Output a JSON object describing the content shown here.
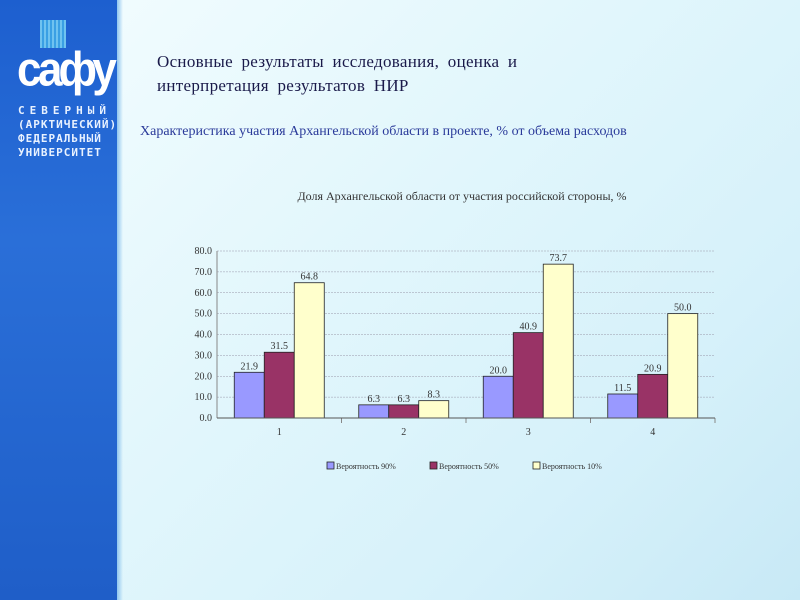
{
  "logo": {
    "mark": "сафу",
    "lines": [
      "СЕВЕРНЫЙ",
      "(АРКТИЧЕСКИЙ)",
      "ФЕДЕРАЛЬНЫЙ",
      "УНИВЕРСИТЕТ"
    ]
  },
  "slide": {
    "title_line1": "Основные результаты исследования, оценка и",
    "title_line2": "интерпретация результатов НИР",
    "subtitle": "Характеристика участия Архангельской области в проекте, % от объема расходов"
  },
  "colors": {
    "s1": "#9999ff",
    "s2": "#993366",
    "s3": "#ffffcc"
  },
  "chart_data": {
    "type": "bar",
    "title": "Доля Архангельской области от участия российской стороны, %",
    "categories": [
      "1",
      "2",
      "3",
      "4"
    ],
    "series": [
      {
        "name": "Вероятность 90%",
        "values": [
          21.9,
          6.3,
          20.0,
          11.5
        ]
      },
      {
        "name": "Вероятность 50%",
        "values": [
          31.5,
          6.3,
          40.9,
          20.9
        ]
      },
      {
        "name": "Вероятность 10%",
        "values": [
          64.8,
          8.3,
          73.7,
          50.0
        ]
      }
    ],
    "ylim": [
      0,
      80
    ],
    "yticks": [
      "0.0",
      "10.0",
      "20.0",
      "30.0",
      "40.0",
      "50.0",
      "60.0",
      "70.0",
      "80.0"
    ],
    "grid": true,
    "legend": "bottom",
    "xlabel": "",
    "ylabel": ""
  }
}
